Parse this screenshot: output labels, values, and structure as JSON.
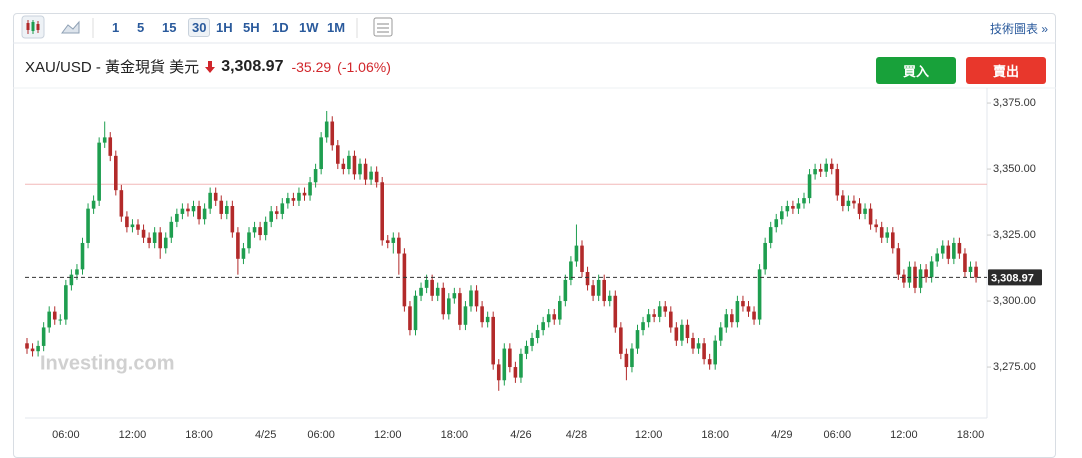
{
  "toolbar": {
    "intervals": [
      "1",
      "5",
      "15",
      "30",
      "1H",
      "5H",
      "1D",
      "1W",
      "1M"
    ],
    "selected": 3,
    "link": "技術圖表 »"
  },
  "header": {
    "symbol": "XAU/USD - 黃金現貨 美元",
    "price": "3,308.97",
    "change": "-35.29",
    "change_pct": "(-1.06%)"
  },
  "buttons": {
    "buy": "買入",
    "sell": "賣出"
  },
  "watermark": "Investing.com",
  "chart_data": {
    "type": "candlestick",
    "categories": [
      null,
      null,
      null,
      null,
      null,
      null,
      null,
      "06:00",
      null,
      null,
      null,
      null,
      null,
      null,
      null,
      null,
      null,
      null,
      null,
      "12:00",
      null,
      null,
      null,
      null,
      null,
      null,
      null,
      null,
      null,
      null,
      null,
      "18:00",
      null,
      null,
      null,
      null,
      null,
      null,
      null,
      null,
      null,
      null,
      null,
      "4/25",
      null,
      null,
      null,
      null,
      null,
      null,
      null,
      null,
      null,
      "06:00",
      null,
      null,
      null,
      null,
      null,
      null,
      null,
      null,
      null,
      null,
      null,
      "12:00",
      null,
      null,
      null,
      null,
      null,
      null,
      null,
      null,
      null,
      null,
      null,
      "18:00",
      null,
      null,
      null,
      null,
      null,
      null,
      null,
      null,
      null,
      null,
      null,
      "4/26",
      null,
      null,
      null,
      null,
      null,
      null,
      null,
      null,
      null,
      "4/28",
      null,
      null,
      null,
      null,
      null,
      null,
      null,
      null,
      null,
      null,
      null,
      null,
      "12:00",
      null,
      null,
      null,
      null,
      null,
      null,
      null,
      null,
      null,
      null,
      null,
      "18:00",
      null,
      null,
      null,
      null,
      null,
      null,
      null,
      null,
      null,
      null,
      null,
      "4/29",
      null,
      null,
      null,
      null,
      null,
      null,
      null,
      null,
      null,
      "06:00",
      null,
      null,
      null,
      null,
      null,
      null,
      null,
      null,
      null,
      null,
      null,
      "12:00",
      null,
      null,
      null,
      null,
      null,
      null,
      null,
      null,
      null,
      null,
      null,
      "18:00",
      null
    ],
    "open": [
      3284,
      3282,
      3281,
      3283,
      3290,
      3296,
      3293,
      3293,
      3306,
      3310,
      3312,
      3322,
      3335,
      3338,
      3360,
      3362,
      3355,
      3342,
      3332,
      3328,
      3329,
      3327,
      3324,
      3322,
      3326,
      3320,
      3324,
      3330,
      3333,
      3335,
      3334,
      3336,
      3331,
      3335,
      3341,
      3338,
      3333,
      3336,
      3326,
      3316,
      3320,
      3326,
      3328,
      3325,
      3330,
      3334,
      3333,
      3337,
      3339,
      3338,
      3341,
      3340,
      3345,
      3350,
      3362,
      3368,
      3359,
      3352,
      3350,
      3355,
      3348,
      3352,
      3346,
      3349,
      3345,
      3323,
      3322,
      3324,
      3318,
      3298,
      3289,
      3302,
      3305,
      3308,
      3302,
      3305,
      3295,
      3301,
      3303,
      3291,
      3298,
      3304,
      3298,
      3292,
      3294,
      3276,
      3270,
      3282,
      3275,
      3271,
      3280,
      3283,
      3286,
      3289,
      3292,
      3295,
      3293,
      3300,
      3308,
      3315,
      3321,
      3311,
      3306,
      3302,
      3308,
      3300,
      3302,
      3290,
      3280,
      3275,
      3282,
      3289,
      3292,
      3295,
      3294,
      3298,
      3296,
      3290,
      3285,
      3291,
      3286,
      3282,
      3284,
      3278,
      3276,
      3285,
      3290,
      3295,
      3292,
      3300,
      3298,
      3296,
      3293,
      3312,
      3322,
      3328,
      3331,
      3334,
      3336,
      3335,
      3337,
      3339,
      3348,
      3350,
      3349,
      3352,
      3350,
      3340,
      3336,
      3338,
      3337,
      3333,
      3335,
      3329,
      3328,
      3324,
      3326,
      3320,
      3310,
      3307,
      3313,
      3305,
      3312,
      3309,
      3315,
      3318,
      3321,
      3316,
      3322,
      3318,
      3311,
      3313
    ],
    "high": [
      3286,
      3284,
      3285,
      3292,
      3298,
      3298,
      3295,
      3308,
      3312,
      3314,
      3324,
      3337,
      3340,
      3362,
      3368,
      3364,
      3357,
      3344,
      3334,
      3331,
      3331,
      3329,
      3326,
      3328,
      3328,
      3326,
      3332,
      3335,
      3337,
      3337,
      3338,
      3338,
      3337,
      3343,
      3343,
      3340,
      3338,
      3338,
      3328,
      3322,
      3328,
      3330,
      3330,
      3332,
      3336,
      3336,
      3339,
      3341,
      3341,
      3343,
      3343,
      3347,
      3352,
      3364,
      3372,
      3370,
      3361,
      3354,
      3357,
      3357,
      3354,
      3354,
      3351,
      3351,
      3347,
      3325,
      3326,
      3326,
      3320,
      3300,
      3304,
      3307,
      3310,
      3310,
      3307,
      3307,
      3303,
      3305,
      3305,
      3300,
      3306,
      3306,
      3300,
      3296,
      3296,
      3278,
      3284,
      3284,
      3277,
      3282,
      3285,
      3288,
      3291,
      3294,
      3297,
      3297,
      3302,
      3310,
      3317,
      3329,
      3323,
      3313,
      3308,
      3310,
      3310,
      3304,
      3304,
      3292,
      3282,
      3284,
      3291,
      3294,
      3297,
      3297,
      3300,
      3300,
      3298,
      3292,
      3293,
      3293,
      3288,
      3286,
      3286,
      3280,
      3287,
      3292,
      3297,
      3297,
      3302,
      3302,
      3300,
      3298,
      3314,
      3324,
      3330,
      3333,
      3336,
      3338,
      3338,
      3339,
      3341,
      3350,
      3352,
      3352,
      3354,
      3354,
      3352,
      3342,
      3340,
      3340,
      3339,
      3337,
      3337,
      3331,
      3330,
      3328,
      3328,
      3322,
      3312,
      3315,
      3315,
      3314,
      3314,
      3317,
      3320,
      3323,
      3323,
      3324,
      3324,
      3320,
      3315,
      3315
    ],
    "low": [
      3280,
      3279,
      3279,
      3281,
      3288,
      3291,
      3291,
      3291,
      3304,
      3308,
      3310,
      3320,
      3333,
      3336,
      3358,
      3353,
      3340,
      3330,
      3326,
      3326,
      3325,
      3322,
      3320,
      3320,
      3316,
      3318,
      3322,
      3328,
      3331,
      3332,
      3332,
      3329,
      3329,
      3333,
      3336,
      3331,
      3331,
      3324,
      3310,
      3314,
      3318,
      3324,
      3323,
      3323,
      3328,
      3331,
      3331,
      3335,
      3336,
      3336,
      3338,
      3338,
      3343,
      3348,
      3360,
      3357,
      3350,
      3348,
      3348,
      3346,
      3346,
      3344,
      3344,
      3343,
      3321,
      3320,
      3318,
      3310,
      3296,
      3287,
      3287,
      3300,
      3303,
      3300,
      3300,
      3293,
      3293,
      3299,
      3289,
      3289,
      3296,
      3296,
      3290,
      3290,
      3274,
      3266,
      3268,
      3273,
      3269,
      3269,
      3278,
      3281,
      3284,
      3287,
      3290,
      3291,
      3291,
      3298,
      3306,
      3313,
      3309,
      3304,
      3300,
      3300,
      3298,
      3298,
      3288,
      3278,
      3270,
      3273,
      3280,
      3287,
      3290,
      3292,
      3292,
      3294,
      3288,
      3283,
      3283,
      3284,
      3280,
      3280,
      3276,
      3274,
      3274,
      3283,
      3288,
      3290,
      3290,
      3296,
      3294,
      3291,
      3291,
      3310,
      3320,
      3326,
      3329,
      3332,
      3333,
      3333,
      3335,
      3337,
      3346,
      3347,
      3347,
      3348,
      3338,
      3334,
      3334,
      3335,
      3331,
      3331,
      3327,
      3326,
      3322,
      3322,
      3318,
      3308,
      3305,
      3305,
      3303,
      3303,
      3307,
      3307,
      3313,
      3316,
      3314,
      3314,
      3316,
      3309,
      3309,
      3307
    ],
    "close": [
      3282,
      3281,
      3283,
      3290,
      3296,
      3293,
      3293,
      3306,
      3310,
      3312,
      3322,
      3335,
      3338,
      3360,
      3362,
      3355,
      3342,
      3332,
      3328,
      3329,
      3327,
      3324,
      3322,
      3326,
      3320,
      3324,
      3330,
      3333,
      3335,
      3334,
      3336,
      3331,
      3335,
      3341,
      3338,
      3333,
      3336,
      3326,
      3316,
      3320,
      3326,
      3328,
      3325,
      3330,
      3334,
      3333,
      3337,
      3339,
      3338,
      3341,
      3340,
      3345,
      3350,
      3362,
      3368,
      3359,
      3352,
      3350,
      3355,
      3348,
      3352,
      3346,
      3349,
      3345,
      3323,
      3322,
      3324,
      3318,
      3298,
      3289,
      3302,
      3305,
      3308,
      3302,
      3305,
      3295,
      3301,
      3303,
      3291,
      3298,
      3304,
      3298,
      3292,
      3294,
      3276,
      3270,
      3282,
      3275,
      3271,
      3280,
      3283,
      3286,
      3289,
      3292,
      3295,
      3293,
      3300,
      3308,
      3315,
      3321,
      3311,
      3306,
      3302,
      3308,
      3300,
      3302,
      3290,
      3280,
      3275,
      3282,
      3289,
      3292,
      3295,
      3294,
      3298,
      3296,
      3290,
      3285,
      3291,
      3286,
      3282,
      3284,
      3278,
      3276,
      3285,
      3290,
      3295,
      3292,
      3300,
      3298,
      3296,
      3293,
      3312,
      3322,
      3328,
      3331,
      3334,
      3336,
      3335,
      3337,
      3339,
      3348,
      3350,
      3349,
      3352,
      3350,
      3340,
      3336,
      3338,
      3337,
      3333,
      3335,
      3329,
      3328,
      3324,
      3326,
      3320,
      3310,
      3307,
      3313,
      3305,
      3312,
      3309,
      3315,
      3318,
      3321,
      3316,
      3322,
      3318,
      3311,
      3313,
      3308.97
    ],
    "up_color": "#1e9e4f",
    "down_color": "#b22a2a",
    "prev_close": 3344.26,
    "prev_close_color": "#f2b8b8",
    "last_price": {
      "value": 3308.97,
      "label": "3,308.97"
    },
    "ylim": [
      3255.7,
      3380.7
    ],
    "yticks": [
      {
        "value": 3275,
        "label": "3,275.00"
      },
      {
        "value": 3300,
        "label": "3,300.00"
      },
      {
        "value": 3325,
        "label": "3,325.00"
      },
      {
        "value": 3350,
        "label": "3,350.00"
      },
      {
        "value": 3375,
        "label": "3,375.00"
      }
    ],
    "grid": false
  }
}
